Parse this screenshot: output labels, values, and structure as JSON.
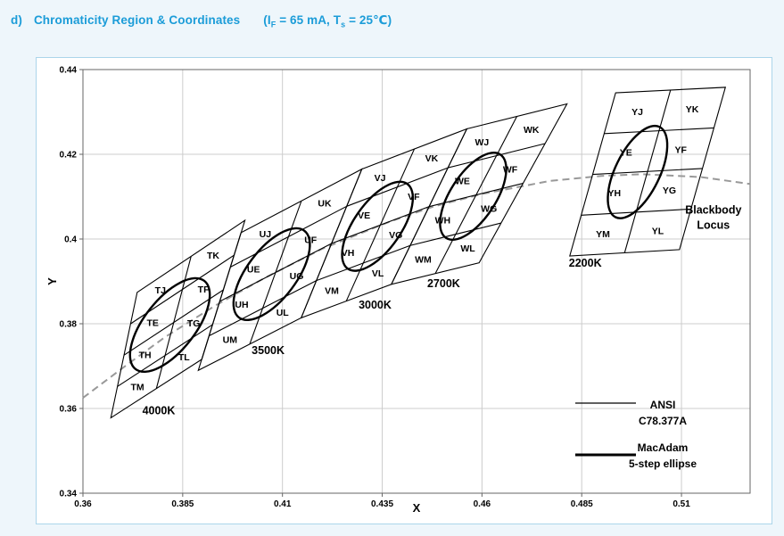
{
  "header": {
    "index": "d)",
    "title": "Chromaticity Region & Coordinates",
    "condition": {
      "p1": "(I",
      "sub1": "F",
      "p2": " = 65 mA, T",
      "sub2": "s",
      "p3": " = 25℃)"
    }
  },
  "colors": {
    "title_text": "#1b9cd8",
    "page_bg": "#eef6fb",
    "panel_bg": "#ffffff",
    "panel_border": "#abd5ea",
    "grid": "#cccccc",
    "frame": "#666666",
    "line": "#000000",
    "locus": "#999999"
  },
  "chart_data": {
    "type": "scatter",
    "title": "",
    "xlabel": "X",
    "ylabel": "Y",
    "xlim": [
      0.36,
      0.5272
    ],
    "ylim": [
      0.34,
      0.44
    ],
    "grid": true,
    "legend_position": "bottom-right",
    "xticks": [
      {
        "v": 0.36,
        "label": "0.36"
      },
      {
        "v": 0.385,
        "label": "0.385"
      },
      {
        "v": 0.41,
        "label": "0.41"
      },
      {
        "v": 0.435,
        "label": "0.435"
      },
      {
        "v": 0.46,
        "label": "0.46"
      },
      {
        "v": 0.485,
        "label": "0.485"
      },
      {
        "v": 0.51,
        "label": "0.51"
      }
    ],
    "yticks": [
      {
        "v": 0.34,
        "label": "0.34"
      },
      {
        "v": 0.36,
        "label": "0.36"
      },
      {
        "v": 0.38,
        "label": "0.38"
      },
      {
        "v": 0.4,
        "label": "0.4"
      },
      {
        "v": 0.42,
        "label": "0.42"
      },
      {
        "v": 0.44,
        "label": "0.44"
      }
    ],
    "blackbody_locus": {
      "label_lines": [
        "Blackbody",
        "Locus"
      ],
      "label_pos": [
        0.518,
        0.406
      ],
      "points": [
        [
          0.36,
          0.3625
        ],
        [
          0.371,
          0.3703
        ],
        [
          0.3805,
          0.3768
        ],
        [
          0.393,
          0.3842
        ],
        [
          0.4053,
          0.3907
        ],
        [
          0.42,
          0.3977
        ],
        [
          0.4369,
          0.4041
        ],
        [
          0.448,
          0.4077
        ],
        [
          0.4599,
          0.4106
        ],
        [
          0.477,
          0.4137
        ],
        [
          0.49,
          0.4149
        ],
        [
          0.5003,
          0.4153
        ],
        [
          0.515,
          0.4146
        ],
        [
          0.5272,
          0.413
        ]
      ]
    },
    "groups": [
      {
        "cct": "4000K",
        "corners": {
          "top_left": [
            0.3736,
            0.3874
          ],
          "top_right": [
            0.4006,
            0.4044
          ],
          "bottom_right": [
            0.3898,
            0.3716
          ],
          "bottom_left": [
            0.367,
            0.3578
          ]
        },
        "cells": [
          [
            "TJ",
            "TK"
          ],
          [
            "TE",
            "TF"
          ],
          [
            "TH",
            "TG"
          ],
          [
            "TM",
            "TL"
          ]
        ],
        "ellipse": {
          "cx": 0.3818,
          "cy": 0.3797,
          "a": 0.0136,
          "b": 0.0062,
          "rot": 52
        },
        "label": "4000K",
        "label_pos": [
          0.379,
          0.3595
        ]
      },
      {
        "cct": "3500K",
        "corners": {
          "top_left": [
            0.3996,
            0.4015
          ],
          "top_right": [
            0.4299,
            0.4165
          ],
          "bottom_right": [
            0.4147,
            0.3814
          ],
          "bottom_left": [
            0.3889,
            0.369
          ]
        },
        "cells": [
          [
            "UJ",
            "UK"
          ],
          [
            "UE",
            "UF"
          ],
          [
            "UH",
            "UG"
          ],
          [
            "UM",
            "UL"
          ]
        ],
        "ellipse": {
          "cx": 0.4073,
          "cy": 0.3917,
          "a": 0.0132,
          "b": 0.006,
          "rot": 53
        },
        "label": "3500K",
        "label_pos": [
          0.4064,
          0.3737
        ]
      },
      {
        "cct": "3000K",
        "corners": {
          "top_left": [
            0.4299,
            0.4165
          ],
          "top_right": [
            0.4562,
            0.426
          ],
          "bottom_right": [
            0.4373,
            0.3893
          ],
          "bottom_left": [
            0.4147,
            0.3814
          ]
        },
        "cells": [
          [
            "VJ",
            "VK"
          ],
          [
            "VE",
            "VF"
          ],
          [
            "VH",
            "VG"
          ],
          [
            "VM",
            "VL"
          ]
        ],
        "ellipse": {
          "cx": 0.4338,
          "cy": 0.403,
          "a": 0.0126,
          "b": 0.0057,
          "rot": 55
        },
        "label": "3000K",
        "label_pos": [
          0.4332,
          0.3844
        ]
      },
      {
        "cct": "2700K",
        "corners": {
          "top_left": [
            0.4562,
            0.426
          ],
          "top_right": [
            0.4813,
            0.4319
          ],
          "bottom_right": [
            0.4593,
            0.3944
          ],
          "bottom_left": [
            0.4373,
            0.3893
          ]
        },
        "cells": [
          [
            "WJ",
            "WK"
          ],
          [
            "WE",
            "WF"
          ],
          [
            "WH",
            "WG"
          ],
          [
            "WM",
            "WL"
          ]
        ],
        "ellipse": {
          "cx": 0.4578,
          "cy": 0.4101,
          "a": 0.0121,
          "b": 0.0055,
          "rot": 57
        },
        "label": "2700K",
        "label_pos": [
          0.4504,
          0.3895
        ]
      },
      {
        "cct": "2200K",
        "corners": {
          "top_left": [
            0.4935,
            0.4345
          ],
          "top_right": [
            0.521,
            0.4358
          ],
          "bottom_right": [
            0.5095,
            0.3975
          ],
          "bottom_left": [
            0.482,
            0.396
          ]
        },
        "cells": [
          [
            "YJ",
            "YK"
          ],
          [
            "YE",
            "YF"
          ],
          [
            "YH",
            "YG"
          ],
          [
            "YM",
            "YL"
          ]
        ],
        "ellipse": {
          "cx": 0.499,
          "cy": 0.4158,
          "a": 0.0122,
          "b": 0.0054,
          "rot": 64
        },
        "label": "2200K",
        "label_pos": [
          0.4859,
          0.3943
        ]
      }
    ],
    "legend": {
      "entries": [
        {
          "style": "thin",
          "lines": [
            "ANSI",
            "C78.377A"
          ]
        },
        {
          "style": "thick",
          "lines": [
            "MacAdam",
            "5-step ellipse"
          ]
        }
      ]
    }
  }
}
